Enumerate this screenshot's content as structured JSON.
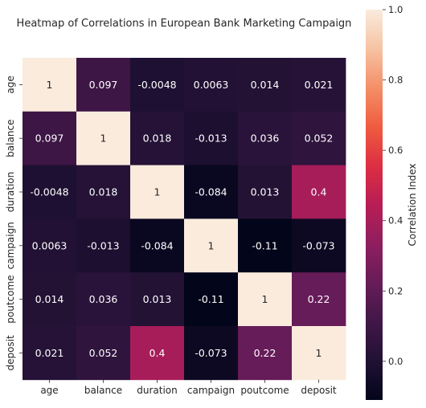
{
  "chart_data": {
    "type": "heatmap",
    "title": "Heatmap of Correlations in European Bank Marketing Campaign",
    "x_categories": [
      "age",
      "balance",
      "duration",
      "campaign",
      "poutcome",
      "deposit"
    ],
    "y_categories": [
      "age",
      "balance",
      "duration",
      "campaign",
      "poutcome",
      "deposit"
    ],
    "matrix": [
      [
        1,
        0.097,
        -0.0048,
        0.0063,
        0.014,
        0.021
      ],
      [
        0.097,
        1,
        0.018,
        -0.013,
        0.036,
        0.052
      ],
      [
        -0.0048,
        0.018,
        1,
        -0.084,
        0.013,
        0.4
      ],
      [
        0.0063,
        -0.013,
        -0.084,
        1,
        -0.11,
        -0.073
      ],
      [
        0.014,
        0.036,
        0.013,
        -0.11,
        1,
        0.22
      ],
      [
        0.021,
        0.052,
        0.4,
        -0.073,
        0.22,
        1
      ]
    ],
    "labels": [
      [
        "1",
        "0.097",
        "-0.0048",
        "0.0063",
        "0.014",
        "0.021"
      ],
      [
        "0.097",
        "1",
        "0.018",
        "-0.013",
        "0.036",
        "0.052"
      ],
      [
        "-0.0048",
        "0.018",
        "1",
        "-0.084",
        "0.013",
        "0.4"
      ],
      [
        "0.0063",
        "-0.013",
        "-0.084",
        "1",
        "-0.11",
        "-0.073"
      ],
      [
        "0.014",
        "0.036",
        "0.013",
        "-0.11",
        "1",
        "0.22"
      ],
      [
        "0.021",
        "0.052",
        "0.4",
        "-0.073",
        "0.22",
        "1"
      ]
    ],
    "colorbar": {
      "label": "Correlation Index",
      "range": [
        -0.11,
        1.0
      ],
      "ticks": [
        0.0,
        0.2,
        0.4,
        0.6,
        0.8,
        1.0
      ],
      "tick_labels": [
        "0.0",
        "0.2",
        "0.4",
        "0.6",
        "0.8",
        "1.0"
      ],
      "colormap": "rocket"
    }
  }
}
